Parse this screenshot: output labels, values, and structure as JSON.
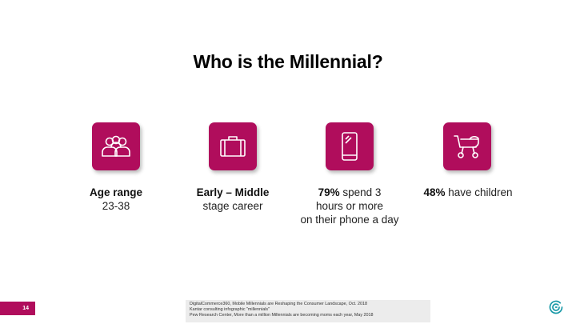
{
  "slide": {
    "title": "Who is the Millennial?",
    "page_number": "14",
    "accent_color": "#b00d5c"
  },
  "facts": [
    {
      "icon": "people-group-icon",
      "bold": "Age range",
      "line1_rest": "",
      "line2": "23-38",
      "line3": ""
    },
    {
      "icon": "briefcase-icon",
      "bold": "Early – Middle",
      "line1_rest": "",
      "line2": "stage career",
      "line3": ""
    },
    {
      "icon": "smartphone-icon",
      "bold": "79%",
      "line1_rest": " spend 3",
      "line2": "hours or more",
      "line3": "on their phone a day"
    },
    {
      "icon": "baby-stroller-icon",
      "bold": "48%",
      "line1_rest": " have children",
      "line2": "",
      "line3": ""
    }
  ],
  "sources": [
    "DigitalCommerce360, Mobile Millennials are Reshaping the Consumer Landscape, Oct. 2018",
    "Kantar consulting infographic \"millennials\"",
    "Pew Research Center, More than a million Millennials are becoming moms each year, May 2018"
  ],
  "logo": {
    "icon": "brand-spiral-logo-icon",
    "color": "#1a9aa8"
  }
}
